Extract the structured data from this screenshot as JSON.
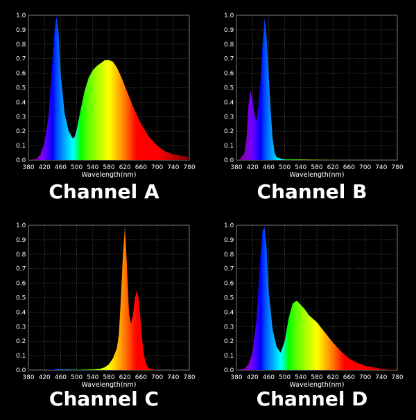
{
  "chart_data": [
    {
      "type": "area",
      "title": "Channel A",
      "xlabel": "Wavelength(nm)",
      "ylabel": "",
      "xlim": [
        380,
        780
      ],
      "ylim": [
        0,
        1.0
      ],
      "x_ticks": [
        "380",
        "420",
        "460",
        "500",
        "540",
        "580",
        "620",
        "660",
        "700",
        "740",
        "780"
      ],
      "y_ticks": [
        "0.0",
        "0.1",
        "0.2",
        "0.3",
        "0.4",
        "0.5",
        "0.6",
        "0.7",
        "0.8",
        "0.9",
        "1.0"
      ],
      "grid": true,
      "series": [
        {
          "x": [
            380,
            400,
            410,
            420,
            430,
            440,
            445,
            450,
            455,
            460,
            470,
            480,
            490,
            495,
            500,
            510,
            520,
            530,
            540,
            550,
            560,
            570,
            580,
            590,
            600,
            610,
            620,
            640,
            660,
            680,
            700,
            720,
            740,
            760,
            780
          ],
          "y": [
            0,
            0.01,
            0.04,
            0.12,
            0.3,
            0.7,
            0.9,
            0.99,
            0.88,
            0.6,
            0.32,
            0.2,
            0.15,
            0.16,
            0.21,
            0.35,
            0.48,
            0.57,
            0.62,
            0.65,
            0.67,
            0.69,
            0.69,
            0.68,
            0.64,
            0.58,
            0.51,
            0.37,
            0.25,
            0.16,
            0.1,
            0.06,
            0.04,
            0.03,
            0.02
          ]
        }
      ]
    },
    {
      "type": "area",
      "title": "Channel B",
      "xlabel": "Wavelength(nm)",
      "ylabel": "",
      "xlim": [
        380,
        780
      ],
      "ylim": [
        0,
        1.0
      ],
      "x_ticks": [
        "380",
        "420",
        "460",
        "500",
        "540",
        "580",
        "620",
        "660",
        "700",
        "740",
        "780"
      ],
      "y_ticks": [
        "0.0",
        "0.1",
        "0.2",
        "0.3",
        "0.4",
        "0.5",
        "0.6",
        "0.7",
        "0.8",
        "0.9",
        "1.0"
      ],
      "grid": true,
      "series": [
        {
          "x": [
            380,
            390,
            400,
            405,
            410,
            415,
            420,
            425,
            430,
            435,
            440,
            445,
            450,
            455,
            460,
            465,
            470,
            475,
            480,
            490,
            500,
            520,
            540,
            560,
            580,
            600,
            620,
            780
          ],
          "y": [
            0,
            0.01,
            0.05,
            0.15,
            0.38,
            0.48,
            0.42,
            0.31,
            0.27,
            0.38,
            0.55,
            0.8,
            0.98,
            0.85,
            0.6,
            0.35,
            0.15,
            0.05,
            0.02,
            0.01,
            0.005,
            0.005,
            0.004,
            0.003,
            0.002,
            0.001,
            0,
            0
          ]
        }
      ]
    },
    {
      "type": "area",
      "title": "Channel C",
      "xlabel": "Wavelength(nm)",
      "ylabel": "",
      "xlim": [
        380,
        780
      ],
      "ylim": [
        0,
        1.0
      ],
      "x_ticks": [
        "380",
        "420",
        "460",
        "500",
        "540",
        "580",
        "620",
        "660",
        "700",
        "740",
        "780"
      ],
      "y_ticks": [
        "0.0",
        "0.1",
        "0.2",
        "0.3",
        "0.4",
        "0.5",
        "0.6",
        "0.7",
        "0.8",
        "0.9",
        "1.0"
      ],
      "grid": true,
      "series": [
        {
          "x": [
            380,
            430,
            440,
            450,
            460,
            500,
            540,
            560,
            570,
            580,
            590,
            600,
            605,
            610,
            615,
            620,
            625,
            630,
            635,
            640,
            645,
            650,
            655,
            660,
            665,
            670,
            675,
            680,
            700,
            780
          ],
          "y": [
            0,
            0,
            0.005,
            0.008,
            0.005,
            0.002,
            0.005,
            0.01,
            0.02,
            0.04,
            0.08,
            0.15,
            0.25,
            0.5,
            0.8,
            0.99,
            0.72,
            0.4,
            0.32,
            0.38,
            0.5,
            0.55,
            0.48,
            0.3,
            0.15,
            0.07,
            0.03,
            0.01,
            0,
            0
          ]
        }
      ]
    },
    {
      "type": "area",
      "title": "Channel D",
      "xlabel": "Wavelength(nm)",
      "ylabel": "",
      "xlim": [
        380,
        780
      ],
      "ylim": [
        0,
        1.0
      ],
      "x_ticks": [
        "380",
        "420",
        "460",
        "500",
        "540",
        "580",
        "620",
        "660",
        "700",
        "740",
        "780"
      ],
      "y_ticks": [
        "0.0",
        "0.1",
        "0.2",
        "0.3",
        "0.4",
        "0.5",
        "0.6",
        "0.7",
        "0.8",
        "0.9",
        "1.0"
      ],
      "grid": true,
      "series": [
        {
          "x": [
            380,
            400,
            410,
            420,
            430,
            440,
            445,
            450,
            455,
            460,
            470,
            480,
            490,
            500,
            510,
            520,
            530,
            540,
            550,
            560,
            580,
            600,
            620,
            640,
            660,
            680,
            700,
            720,
            740,
            760,
            780
          ],
          "y": [
            0,
            0.01,
            0.04,
            0.12,
            0.35,
            0.8,
            0.96,
            0.99,
            0.85,
            0.55,
            0.28,
            0.16,
            0.12,
            0.2,
            0.36,
            0.46,
            0.48,
            0.45,
            0.42,
            0.38,
            0.33,
            0.26,
            0.19,
            0.13,
            0.08,
            0.05,
            0.03,
            0.02,
            0.01,
            0.005,
            0
          ]
        }
      ]
    }
  ]
}
